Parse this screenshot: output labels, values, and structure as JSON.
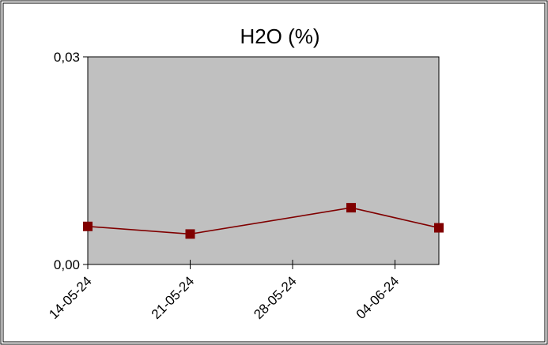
{
  "chart_data": {
    "type": "line",
    "title": "H2O (%)",
    "xlabel": "",
    "ylabel": "",
    "x_tick_labels": [
      "14-05-24",
      "21-05-24",
      "28-05-24",
      "04-06-24"
    ],
    "y_tick_labels": [
      "0,03",
      "0,00"
    ],
    "ylim": [
      0,
      0.03
    ],
    "x": [
      "2024-05-14",
      "2024-05-21",
      "2024-06-01",
      "2024-06-07"
    ],
    "series": [
      {
        "values": [
          0.0055,
          0.0044,
          0.0082,
          0.0053
        ]
      }
    ],
    "colors": {
      "plot_background": "#c0c0c0",
      "line": "#800000",
      "marker": "#800000"
    },
    "grid": false,
    "legend": "none"
  }
}
